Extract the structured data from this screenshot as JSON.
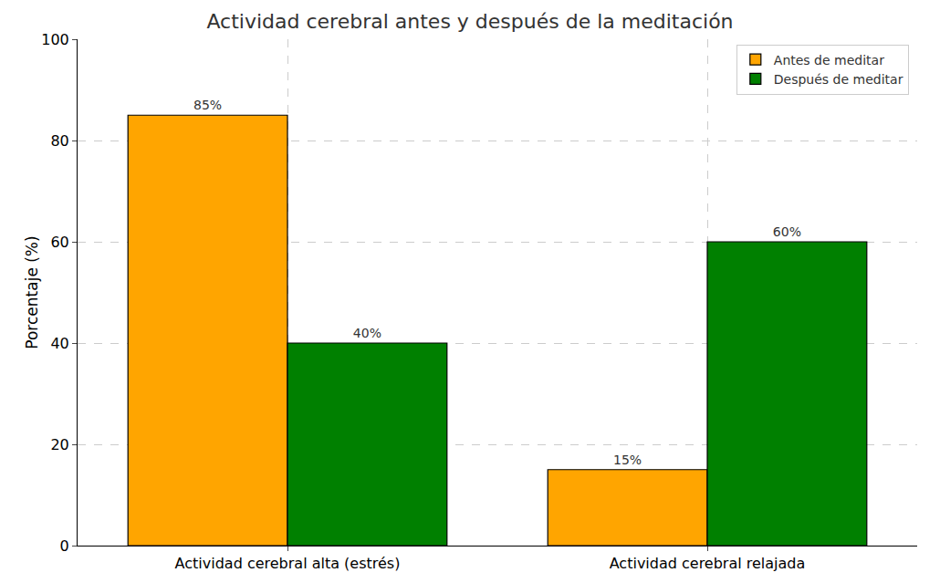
{
  "chart_data": {
    "type": "bar",
    "title": "Actividad cerebral antes y después de la meditación",
    "y_label": "Porcentaje (%)",
    "categories": [
      "Actividad cerebral alta (estrés)",
      "Actividad cerebral relajada"
    ],
    "series": [
      {
        "name": "Antes de meditar",
        "color": "#ffa500",
        "values": [
          85,
          15
        ],
        "value_labels": [
          "85%",
          "15%"
        ]
      },
      {
        "name": "Después de meditar",
        "color": "#008000",
        "values": [
          40,
          60
        ],
        "value_labels": [
          "40%",
          "60%"
        ]
      }
    ],
    "ylim": [
      0,
      100
    ],
    "yticks": [
      0,
      20,
      40,
      60,
      80,
      100
    ],
    "grid": true,
    "legend": "upper right",
    "data_labels": true
  }
}
